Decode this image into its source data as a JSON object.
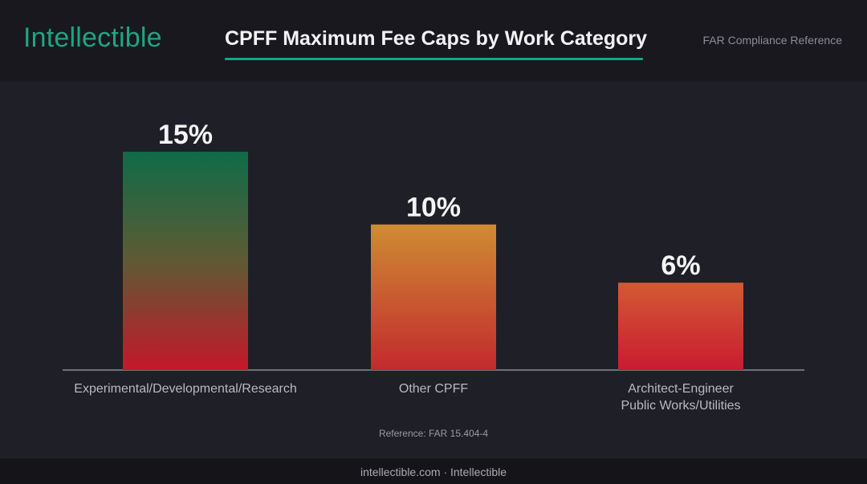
{
  "header": {
    "logo": "Intellectible",
    "title": "CPFF Maximum Fee Caps by Work Category",
    "subtitle": "FAR Compliance Reference"
  },
  "reference": "Reference: FAR 15.404-4",
  "footer": {
    "text": "intellectible.com · Intellectible"
  },
  "colors": {
    "accent": "#1aa382",
    "bar1_top": "#0f6b48",
    "bar1_mid": "#5e5a33",
    "bar1_bottom": "#c4182a",
    "bar2_top": "#cf8c33",
    "bar2_bottom": "#c22a2d",
    "bar3_top": "#d35a33",
    "bar3_bottom": "#c91b32"
  },
  "chart_data": {
    "type": "bar",
    "categories": [
      [
        "Experimental/Developmental/Research"
      ],
      [
        "Other CPFF"
      ],
      [
        "Architect-Engineer",
        "Public Works/Utilities"
      ]
    ],
    "values": [
      15,
      10,
      6
    ],
    "data_labels": [
      "15%",
      "10%",
      "6%"
    ],
    "ylim": [
      0,
      15
    ],
    "grid": false,
    "legend": "none"
  }
}
